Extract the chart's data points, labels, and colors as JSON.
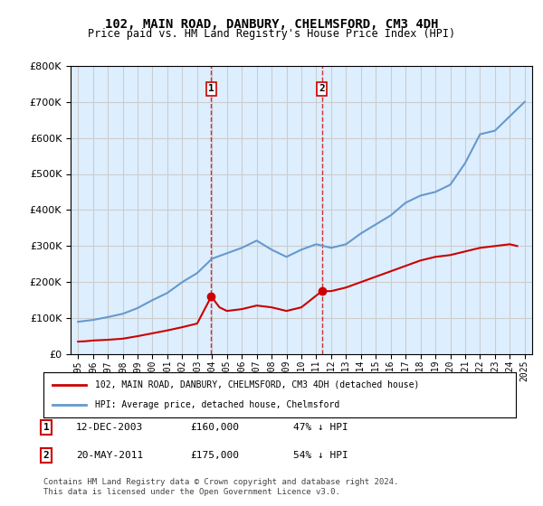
{
  "title": "102, MAIN ROAD, DANBURY, CHELMSFORD, CM3 4DH",
  "subtitle": "Price paid vs. HM Land Registry's House Price Index (HPI)",
  "legend_line1": "102, MAIN ROAD, DANBURY, CHELMSFORD, CM3 4DH (detached house)",
  "legend_line2": "HPI: Average price, detached house, Chelmsford",
  "footer": "Contains HM Land Registry data © Crown copyright and database right 2024.\nThis data is licensed under the Open Government Licence v3.0.",
  "transactions": [
    {
      "label": "1",
      "date": "12-DEC-2003",
      "price": 160000,
      "pct": "47%",
      "dir": "↓",
      "year": 2003.95
    },
    {
      "label": "2",
      "date": "20-MAY-2011",
      "price": 175000,
      "pct": "54%",
      "dir": "↓",
      "year": 2011.38
    }
  ],
  "hpi_years": [
    1995,
    1996,
    1997,
    1998,
    1999,
    2000,
    2001,
    2002,
    2003,
    2004,
    2005,
    2006,
    2007,
    2008,
    2009,
    2010,
    2011,
    2012,
    2013,
    2014,
    2015,
    2016,
    2017,
    2018,
    2019,
    2020,
    2021,
    2022,
    2023,
    2024,
    2025
  ],
  "hpi_values": [
    90000,
    95000,
    103000,
    112000,
    128000,
    150000,
    170000,
    200000,
    225000,
    265000,
    280000,
    295000,
    315000,
    290000,
    270000,
    290000,
    305000,
    295000,
    305000,
    335000,
    360000,
    385000,
    420000,
    440000,
    450000,
    470000,
    530000,
    610000,
    620000,
    660000,
    700000
  ],
  "price_years": [
    1995,
    1995.5,
    1996,
    1997,
    1998,
    1999,
    2000,
    2001,
    2002,
    2003,
    2003.95,
    2004.5,
    2005,
    2006,
    2007,
    2008,
    2009,
    2010,
    2011.38,
    2012,
    2013,
    2014,
    2015,
    2016,
    2017,
    2018,
    2019,
    2020,
    2021,
    2022,
    2023,
    2024,
    2024.5
  ],
  "price_values": [
    35000,
    36000,
    38000,
    40000,
    43000,
    50000,
    58000,
    66000,
    75000,
    85000,
    160000,
    130000,
    120000,
    125000,
    135000,
    130000,
    120000,
    130000,
    175000,
    175000,
    185000,
    200000,
    215000,
    230000,
    245000,
    260000,
    270000,
    275000,
    285000,
    295000,
    300000,
    305000,
    300000
  ],
  "ylim": [
    0,
    800000
  ],
  "xlim": [
    1994.5,
    2025.5
  ],
  "red_color": "#cc0000",
  "blue_color": "#6699cc",
  "bg_color": "#ddeeff",
  "plot_bg": "#ffffff",
  "grid_color": "#cccccc",
  "vline_color": "#cc0000"
}
